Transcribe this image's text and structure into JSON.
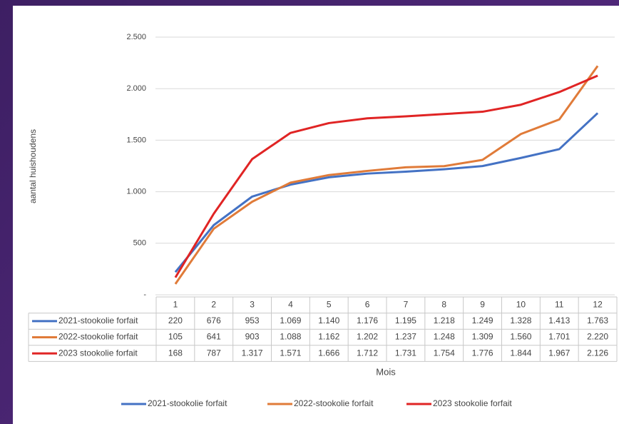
{
  "chart_data": {
    "type": "line",
    "y_label": "aantal huishoudens",
    "x_label": "Mois",
    "categories": [
      "1",
      "2",
      "3",
      "4",
      "5",
      "6",
      "7",
      "8",
      "9",
      "10",
      "11",
      "12"
    ],
    "ylim": [
      0,
      2500
    ],
    "yticks": [
      {
        "value": 0,
        "label": "-"
      },
      500,
      {
        "value": 1000,
        "label": "1.000"
      },
      {
        "value": 1500,
        "label": "1.500"
      },
      {
        "value": 2000,
        "label": "2.000"
      },
      {
        "value": 2500,
        "label": "2.500"
      }
    ],
    "grid": true,
    "legend": "bottom",
    "series": [
      {
        "name": "2021-stookolie forfait",
        "color": "#4472c4",
        "values": [
          220,
          676,
          953,
          1069,
          1140,
          1176,
          1195,
          1218,
          1249,
          1328,
          1413,
          1763
        ],
        "value_labels": [
          "220",
          "676",
          "953",
          "1.069",
          "1.140",
          "1.176",
          "1.195",
          "1.218",
          "1.249",
          "1.328",
          "1.413",
          "1.763"
        ]
      },
      {
        "name": "2022-stookolie forfait",
        "color": "#e07b39",
        "values": [
          105,
          641,
          903,
          1088,
          1162,
          1202,
          1237,
          1248,
          1309,
          1560,
          1701,
          2220
        ],
        "value_labels": [
          "105",
          "641",
          "903",
          "1.088",
          "1.162",
          "1.202",
          "1.237",
          "1.248",
          "1.309",
          "1.560",
          "1.701",
          "2.220"
        ]
      },
      {
        "name": "2023 stookolie forfait",
        "color": "#e02424",
        "values": [
          168,
          787,
          1317,
          1571,
          1666,
          1712,
          1731,
          1754,
          1776,
          1844,
          1967,
          2126
        ],
        "value_labels": [
          "168",
          "787",
          "1.317",
          "1.571",
          "1.666",
          "1.712",
          "1.731",
          "1.754",
          "1.776",
          "1.844",
          "1.967",
          "2.126"
        ]
      }
    ]
  }
}
